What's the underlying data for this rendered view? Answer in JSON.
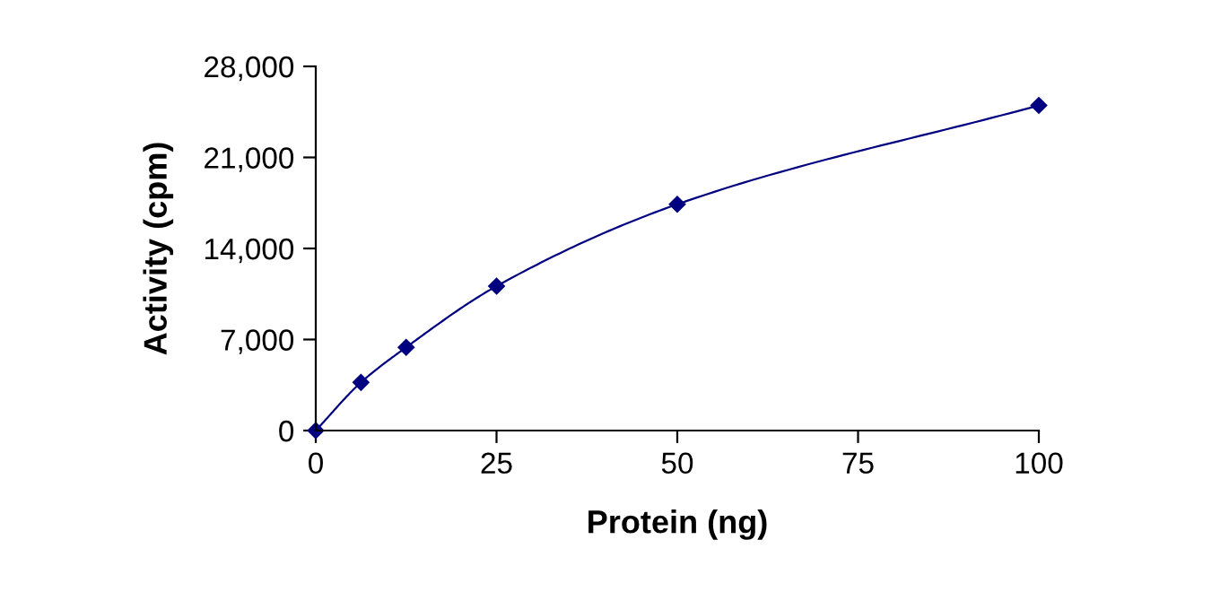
{
  "chart_data": {
    "type": "line",
    "xlabel": "Protein (ng)",
    "ylabel": "Activity (cpm)",
    "x": [
      0,
      6.25,
      12.5,
      25,
      50,
      100
    ],
    "series": [
      {
        "color": "#000080",
        "values": [
          0,
          3700,
          6400,
          11100,
          17400,
          25000
        ]
      }
    ],
    "xlim": [
      0,
      100
    ],
    "xticks": [
      0,
      25,
      50,
      75,
      100
    ],
    "ylim": [
      0,
      28000
    ],
    "yticks": [
      {
        "value": 0,
        "label": "0"
      },
      {
        "value": 7000,
        "label": "7,000"
      },
      {
        "value": 14000,
        "label": "14,000"
      },
      {
        "value": 21000,
        "label": "21,000"
      },
      {
        "value": 28000,
        "label": "28,000"
      }
    ],
    "marker": "diamond",
    "grid": false,
    "legend": false
  }
}
